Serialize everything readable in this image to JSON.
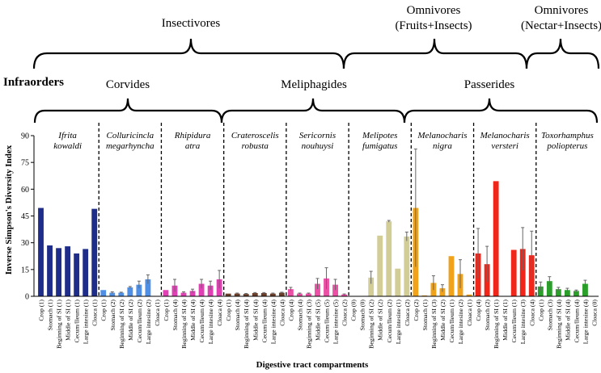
{
  "chart_data": {
    "type": "bar",
    "ylabel": "Inverse Simpson's Diversity Index",
    "xlabel": "Digestive tract compartments",
    "ylim": [
      0,
      90
    ],
    "yticks": [
      0,
      15,
      30,
      45,
      60,
      75,
      90
    ],
    "infraorders_label": "Infraorders",
    "diets": [
      {
        "label": "Insectivores"
      },
      {
        "label": "Omnivores",
        "sublabel": "(Fruits+Insects)"
      },
      {
        "label": "Omnivores",
        "sublabel": "(Nectar+Insects)"
      }
    ],
    "infraorders": [
      {
        "label": "Corvides"
      },
      {
        "label": "Meliphagides"
      },
      {
        "label": "Passerides"
      }
    ],
    "species": [
      {
        "name": [
          "Ifrita",
          "kowaldi"
        ],
        "color": "#1f2d8a",
        "bars": [
          {
            "label": "Crop (1)",
            "value": 49.5,
            "err": 0
          },
          {
            "label": "Stomach (1)",
            "value": 28.5,
            "err": 0
          },
          {
            "label": "Beginning of SI (1)",
            "value": 27.0,
            "err": 0
          },
          {
            "label": "Middle of SI (1)",
            "value": 28.0,
            "err": 0
          },
          {
            "label": "Cecum/Ileum (1)",
            "value": 24.0,
            "err": 0
          },
          {
            "label": "Large intesine (1)",
            "value": 26.5,
            "err": 0
          },
          {
            "label": "Cloaca (1)",
            "value": 49.0,
            "err": 0
          }
        ]
      },
      {
        "name": [
          "Colluricincla",
          "megarhyncha"
        ],
        "color": "#4f8fe6",
        "bars": [
          {
            "label": "Crop (1)",
            "value": 3.5,
            "err": 0
          },
          {
            "label": "Stomach (2)",
            "value": 2.0,
            "err": 0.5
          },
          {
            "label": "Beginning of SI (2)",
            "value": 2.0,
            "err": 0.3
          },
          {
            "label": "Middle of SI (2)",
            "value": 5.0,
            "err": 0.5
          },
          {
            "label": "Cecum/Ileum (2)",
            "value": 6.5,
            "err": 2.0
          },
          {
            "label": "Large intesine (2)",
            "value": 9.5,
            "err": 2.5
          },
          {
            "label": "Cloaca (1)",
            "value": 0,
            "err": 0
          }
        ]
      },
      {
        "name": [
          "Rhipidura",
          "atra"
        ],
        "color": "#e040b4",
        "bars": [
          {
            "label": "Crop (1)",
            "value": 3.5,
            "err": 0
          },
          {
            "label": "Stomach (4)",
            "value": 6.0,
            "err": 3.5
          },
          {
            "label": "Beginning of SI (4)",
            "value": 2.0,
            "err": 0.5
          },
          {
            "label": "Middle of SI (4)",
            "value": 3.0,
            "err": 1.0
          },
          {
            "label": "Cecum/Ileum (4)",
            "value": 7.0,
            "err": 2.5
          },
          {
            "label": "Large intesine (4)",
            "value": 6.0,
            "err": 2.5
          },
          {
            "label": "Cloaca (4)",
            "value": 9.5,
            "err": 5.0
          }
        ]
      },
      {
        "name": [
          "Crateroscelis",
          "robusta"
        ],
        "color": "#6b3e2a",
        "bars": [
          {
            "label": "Crop (1)",
            "value": 1.5,
            "err": 0
          },
          {
            "label": "Stomach (4)",
            "value": 1.5,
            "err": 0.3
          },
          {
            "label": "Beginning of SI (4)",
            "value": 1.3,
            "err": 0.3
          },
          {
            "label": "Middle of SI (4)",
            "value": 1.8,
            "err": 0.3
          },
          {
            "label": "Cecum/Ileum (4)",
            "value": 1.8,
            "err": 0.3
          },
          {
            "label": "Large intesine (4)",
            "value": 1.5,
            "err": 0.3
          },
          {
            "label": "Cloaca (4)",
            "value": 2.0,
            "err": 0.3
          }
        ]
      },
      {
        "name": [
          "Sericornis",
          "nouhuysi"
        ],
        "color": "#ec4fa6",
        "bars": [
          {
            "label": "Crop (4)",
            "value": 4.0,
            "err": 1.0
          },
          {
            "label": "Stomach (4)",
            "value": 1.5,
            "err": 0.3
          },
          {
            "label": "Beginning of SI (3)",
            "value": 1.5,
            "err": 0.3
          },
          {
            "label": "Middle of SI (5)",
            "value": 7.0,
            "err": 3.0
          },
          {
            "label": "Cecum/Ileum (5)",
            "value": 10.0,
            "err": 6.0
          },
          {
            "label": "Large intesine (5)",
            "value": 6.5,
            "err": 3.0
          },
          {
            "label": "Cloaca (2)",
            "value": 1.0,
            "err": 0.3
          }
        ]
      },
      {
        "name": [
          "Melipotes",
          "fumigatus"
        ],
        "color": "#d2cc96",
        "bars": [
          {
            "label": "Crop (0)",
            "value": 0,
            "err": 0
          },
          {
            "label": "Stomach (0)",
            "value": 0,
            "err": 0
          },
          {
            "label": "Beginning of SI (2)",
            "value": 10.5,
            "err": 3.5
          },
          {
            "label": "Middle of SI (2)",
            "value": 34.0,
            "err": 0
          },
          {
            "label": "Cecum/Ileum (2)",
            "value": 42.0,
            "err": 0.5
          },
          {
            "label": "Large intesine (1)",
            "value": 15.5,
            "err": 0
          },
          {
            "label": "Cloaca (2)",
            "value": 33.5,
            "err": 2.5
          }
        ]
      },
      {
        "name": [
          "Melanocharis",
          "nigra"
        ],
        "color": "#f1a21b",
        "bars": [
          {
            "label": "Crop (2)",
            "value": 49.5,
            "err": 33.0
          },
          {
            "label": "Stomach (1)",
            "value": 0.5,
            "err": 0
          },
          {
            "label": "Beginning of SI (3)",
            "value": 7.5,
            "err": 4.0
          },
          {
            "label": "Middle of SI (2)",
            "value": 4.5,
            "err": 2.0
          },
          {
            "label": "Cecum/Ileum (1)",
            "value": 22.5,
            "err": 0
          },
          {
            "label": "Large intesine (2)",
            "value": 12.5,
            "err": 8.0
          },
          {
            "label": "Cloaca (1)",
            "value": 1.0,
            "err": 0
          }
        ]
      },
      {
        "name": [
          "Melanocharis",
          "versteri"
        ],
        "color": "#f0261a",
        "bars": [
          {
            "label": "Crop (4)",
            "value": 24.0,
            "err": 14.0
          },
          {
            "label": "Stomach (2)",
            "value": 18.0,
            "err": 10.0
          },
          {
            "label": "Beginning of SI (1)",
            "value": 64.5,
            "err": 0
          },
          {
            "label": "Middle of SI (1)",
            "value": 0,
            "err": 0
          },
          {
            "label": "Cecum/Ileum (1)",
            "value": 26.0,
            "err": 0
          },
          {
            "label": "Large intesine (3)",
            "value": 26.5,
            "err": 12.0
          },
          {
            "label": "Cloaca (4)",
            "value": 23.0,
            "err": 13.5
          }
        ]
      },
      {
        "name": [
          "Toxorhamphus",
          "poliopterus"
        ],
        "color": "#2aa02a",
        "bars": [
          {
            "label": "Crop (1)",
            "value": 5.5,
            "err": 2.5
          },
          {
            "label": "Stomach (3)",
            "value": 8.5,
            "err": 2.5
          },
          {
            "label": "Beginning of SI (4)",
            "value": 4.0,
            "err": 1.0
          },
          {
            "label": "Middle of SI (4)",
            "value": 3.5,
            "err": 1.0
          },
          {
            "label": "Cecum/Ileum (4)",
            "value": 3.0,
            "err": 0.5
          },
          {
            "label": "Large intesine (4)",
            "value": 7.0,
            "err": 2.0
          },
          {
            "label": "Cloaca (0)",
            "value": 0,
            "err": 0
          }
        ]
      }
    ]
  }
}
